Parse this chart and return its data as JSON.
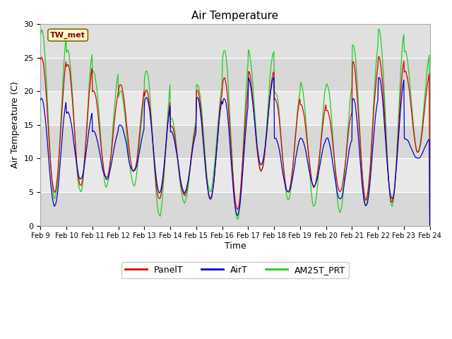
{
  "title": "Air Temperature",
  "ylabel": "Air Temperature (C)",
  "xlabel": "Time",
  "ylim": [
    0,
    30
  ],
  "xlim": [
    0,
    360
  ],
  "annotation_text": "TW_met",
  "fig_bg": "#ffffff",
  "plot_bg": "#e8e8e8",
  "legend_labels": [
    "PanelT",
    "AirT",
    "AM25T_PRT"
  ],
  "line_colors": [
    "#dd0000",
    "#0000cc",
    "#22cc22"
  ],
  "xtick_labels": [
    "Feb 9",
    "Feb 10",
    "Feb 11",
    "Feb 12",
    "Feb 13",
    "Feb 14",
    "Feb 15",
    "Feb 16",
    "Feb 17",
    "Feb 18",
    "Feb 19",
    "Feb 20",
    "Feb 21",
    "Feb 22",
    "Feb 23",
    "Feb 24"
  ],
  "xtick_positions": [
    0,
    24,
    48,
    72,
    96,
    120,
    144,
    168,
    192,
    216,
    240,
    264,
    288,
    312,
    336,
    360
  ],
  "ytick_positions": [
    0,
    5,
    10,
    15,
    20,
    25,
    30
  ],
  "band_boundaries": [
    0,
    5,
    10,
    15,
    20,
    25,
    30
  ],
  "band_colors": [
    "#d8d8d8",
    "#e8e8e8",
    "#d8d8d8",
    "#e8e8e8",
    "#d8d8d8",
    "#e0e0e0"
  ],
  "grid_color": "#ffffff",
  "figsize": [
    6.4,
    4.8
  ],
  "dpi": 100
}
